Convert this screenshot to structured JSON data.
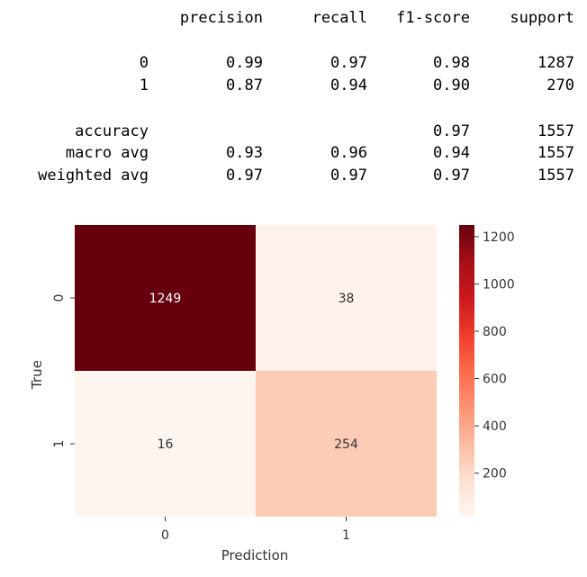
{
  "report": {
    "headers": [
      "precision",
      "recall",
      "f1-score",
      "support"
    ],
    "rows": [
      {
        "label": "0",
        "precision": "0.99",
        "recall": "0.97",
        "f1": "0.98",
        "support": "1287"
      },
      {
        "label": "1",
        "precision": "0.87",
        "recall": "0.94",
        "f1": "0.90",
        "support": "270"
      },
      {
        "label": "accuracy",
        "precision": "",
        "recall": "",
        "f1": "0.97",
        "support": "1557"
      },
      {
        "label": "macro avg",
        "precision": "0.93",
        "recall": "0.96",
        "f1": "0.94",
        "support": "1557"
      },
      {
        "label": "weighted avg",
        "precision": "0.97",
        "recall": "0.97",
        "f1": "0.97",
        "support": "1557"
      }
    ]
  },
  "chart_data": {
    "type": "heatmap",
    "matrix": [
      [
        1249,
        38
      ],
      [
        16,
        254
      ]
    ],
    "x_ticks": [
      "0",
      "1"
    ],
    "y_ticks": [
      "0",
      "1"
    ],
    "xlabel": "Prediction",
    "ylabel": "True",
    "colormap": "Reds",
    "colorbar_ticks": [
      200,
      400,
      600,
      800,
      1000,
      1200
    ],
    "colorbar_range": [
      16,
      1249
    ],
    "colors": {
      "low": "#fff5f0",
      "high": "#67000d"
    }
  }
}
